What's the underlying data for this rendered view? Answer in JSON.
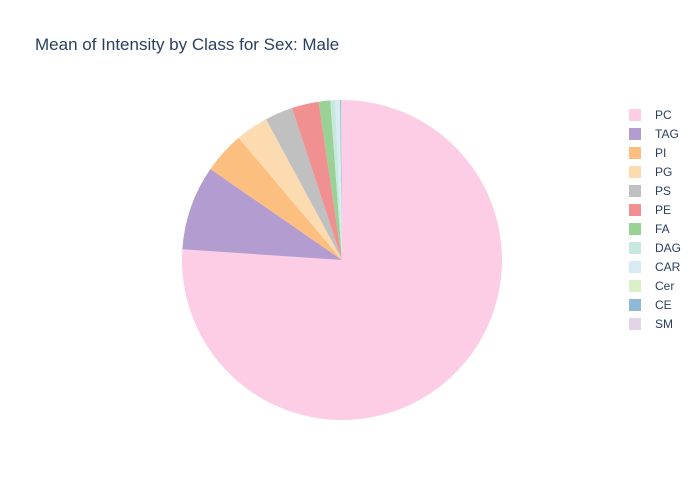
{
  "chart_data": {
    "type": "pie",
    "title": "Mean of Intensity by Class for Sex: Male",
    "legend_position": "right",
    "labels": [
      "PC",
      "TAG",
      "PI",
      "PG",
      "PS",
      "PE",
      "FA",
      "DAG",
      "CAR",
      "Cer",
      "CE",
      "SM"
    ],
    "values": [
      78.2,
      8.8,
      4.3,
      3.4,
      2.9,
      2.8,
      1.2,
      0.5,
      0.4,
      0.1,
      0.1,
      0.1
    ],
    "colors": [
      "#fccde5",
      "#b39ccf",
      "#fdbf80",
      "#fddbb0",
      "#c0c0c0",
      "#f09090",
      "#99d294",
      "#c6e8df",
      "#d8ebf5",
      "#d9f0c8",
      "#8fb9d6",
      "#e3d4e8"
    ]
  }
}
